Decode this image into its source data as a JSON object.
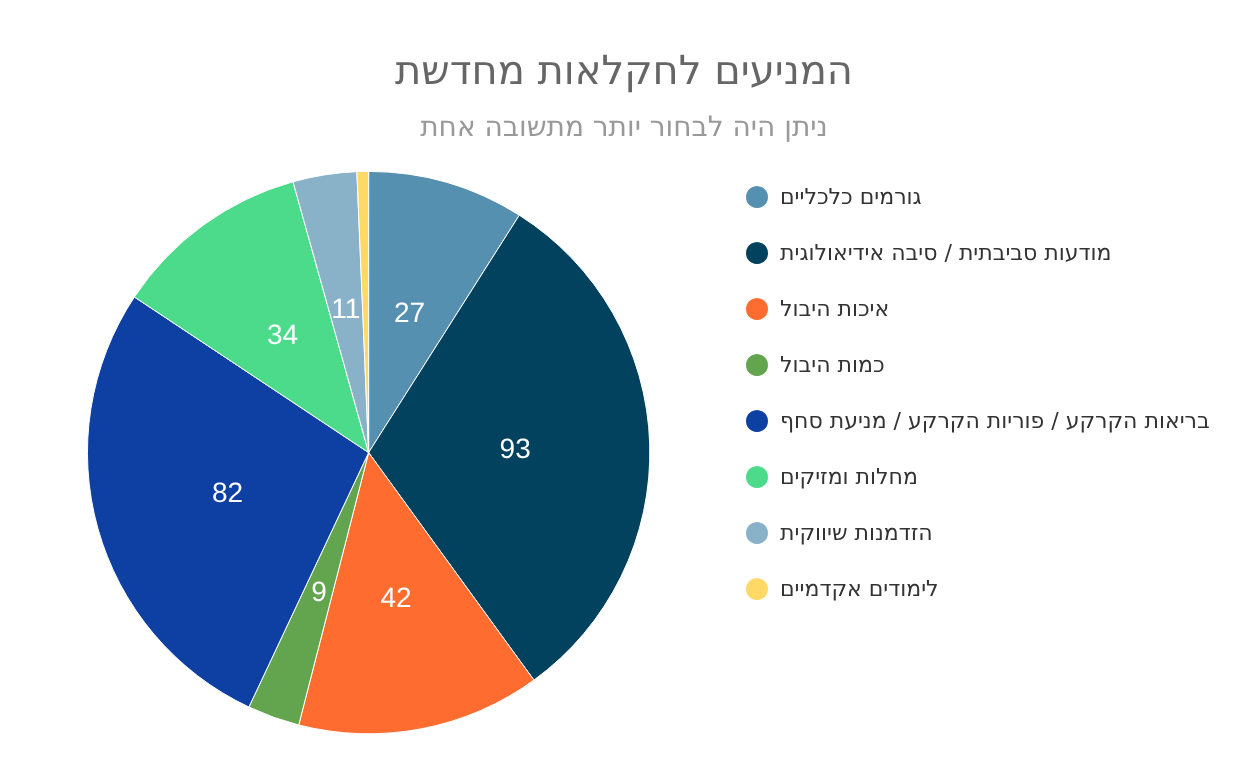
{
  "chart_data": {
    "type": "pie",
    "title": "המניעים לחקלאות מחדשת",
    "subtitle": "ניתן היה לבחור יותר מתשובה אחת",
    "categories": [
      "גורמים כלכליים",
      "מודעות סביבתית / סיבה אידיאולוגית",
      "איכות היבול",
      "כמות היבול",
      "בריאות הקרקע / פוריות הקרקע / מניעת סחף",
      "מחלות ומזיקים",
      "הזדמנות שיווקית",
      "לימודים אקדמיים"
    ],
    "values": [
      27,
      93,
      42,
      9,
      82,
      34,
      11,
      2
    ],
    "value_labels": [
      "27",
      "93",
      "42",
      "9",
      "82",
      "34",
      "11",
      null
    ],
    "colors": [
      "#5690b0",
      "#02425e",
      "#fe6c2f",
      "#63a44e",
      "#0e40a4",
      "#4bdb8b",
      "#89b2c9",
      "#ffd966"
    ],
    "legend": "right"
  }
}
